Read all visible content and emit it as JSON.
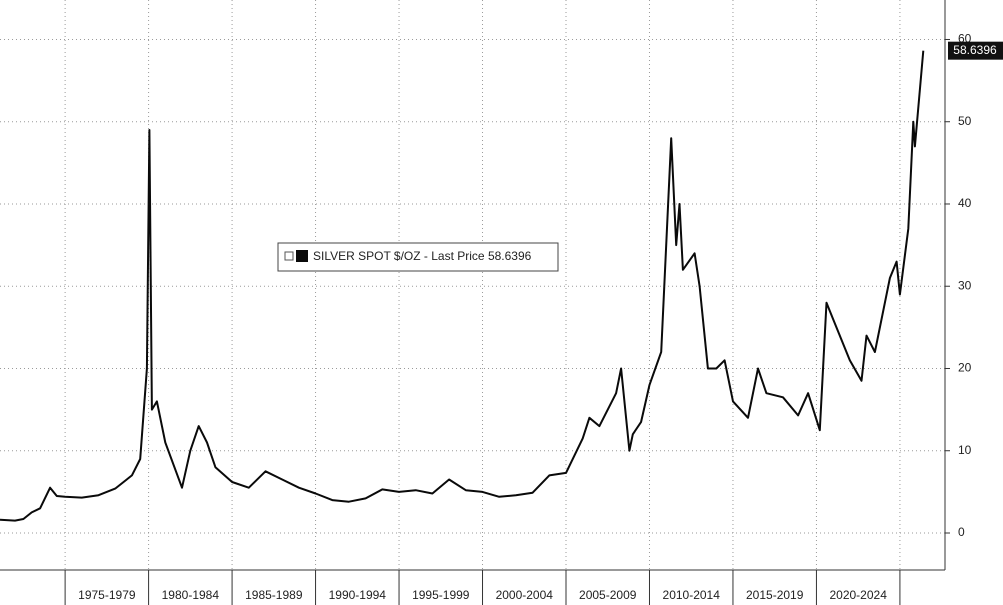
{
  "chart_data": {
    "type": "line",
    "series": [
      {
        "name": "SILVER SPOT $/OZ - Last Price 58.6396",
        "color": "#0a0a0a",
        "x": [
          1971.1,
          1972,
          1972.5,
          1973,
          1973.5,
          1974.1,
          1974.5,
          1975,
          1976,
          1977,
          1978,
          1979,
          1979.5,
          1979.9,
          1980.05,
          1980.2,
          1980.5,
          1981,
          1982,
          1982.5,
          1983,
          1983.5,
          1984,
          1985,
          1986,
          1987,
          1988,
          1989,
          1990,
          1991,
          1992,
          1993,
          1994,
          1995,
          1996,
          1997,
          1998,
          1999,
          2000,
          2001,
          2002,
          2003,
          2004,
          2005,
          2006,
          2006.4,
          2007,
          2008,
          2008.3,
          2008.8,
          2009,
          2009.5,
          2010,
          2010.7,
          2011.3,
          2011.6,
          2011.8,
          2012,
          2012.7,
          2013,
          2013.5,
          2014,
          2014.5,
          2015,
          2015.9,
          2016.5,
          2017,
          2018,
          2018.9,
          2019.5,
          2020.2,
          2020.6,
          2021,
          2022,
          2022.7,
          2023,
          2023.5,
          2024.4,
          2024.8,
          2025,
          2025.5,
          2025.8,
          2025.9,
          2026.4
        ],
        "values": [
          1.6,
          1.5,
          1.7,
          2.5,
          3,
          5.5,
          4.5,
          4.4,
          4.3,
          4.6,
          5.4,
          7,
          9,
          20,
          49,
          15,
          16,
          11,
          5.5,
          10,
          13,
          11,
          8,
          6.2,
          5.5,
          7.5,
          6.5,
          5.5,
          4.8,
          4,
          3.8,
          4.2,
          5.3,
          5,
          5.2,
          4.8,
          6.5,
          5.2,
          5,
          4.4,
          4.6,
          4.9,
          7,
          7.3,
          11.5,
          14,
          13,
          17,
          20,
          10,
          12,
          13.5,
          18,
          22,
          48,
          35,
          40,
          32,
          34,
          30,
          20,
          20,
          21,
          16,
          14,
          20,
          17,
          16.5,
          14.3,
          17,
          12.5,
          28,
          26,
          21,
          18.5,
          24,
          22,
          31,
          33,
          29,
          37,
          50,
          47,
          58.6396
        ]
      }
    ],
    "last_value": 58.6396,
    "xlim": [
      1971.1,
      2027.7
    ],
    "xgrid": [
      1975,
      1980,
      1985,
      1990,
      1995,
      2000,
      2005,
      2010,
      2015,
      2020,
      2025
    ],
    "xticks": [
      {
        "value": 1977.5,
        "label": "1975-1979"
      },
      {
        "value": 1982.5,
        "label": "1980-1984"
      },
      {
        "value": 1987.5,
        "label": "1985-1989"
      },
      {
        "value": 1992.5,
        "label": "1990-1994"
      },
      {
        "value": 1997.5,
        "label": "1995-1999"
      },
      {
        "value": 2002.5,
        "label": "2000-2004"
      },
      {
        "value": 2007.5,
        "label": "2005-2009"
      },
      {
        "value": 2012.5,
        "label": "2010-2014"
      },
      {
        "value": 2017.5,
        "label": "2015-2019"
      },
      {
        "value": 2022.5,
        "label": "2020-2024"
      }
    ],
    "ylim": [
      -4.5,
      64.8
    ],
    "yticks": [
      0,
      10,
      20,
      30,
      40,
      50,
      60
    ],
    "grid": true
  }
}
